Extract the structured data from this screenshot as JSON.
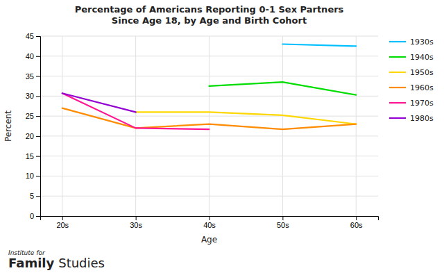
{
  "chart_data": {
    "type": "line",
    "title": "Percentage of Americans Reporting 0-1 Sex Partners\nSince Age 18, by Age and Birth Cohort",
    "x_label": "Age",
    "y_label": "Percent",
    "categories": [
      "20s",
      "30s",
      "40s",
      "50s",
      "60s"
    ],
    "series": [
      {
        "name": "1930s",
        "color": "#00BFFF",
        "values": [
          null,
          null,
          null,
          43,
          42.5
        ]
      },
      {
        "name": "1940s",
        "color": "#00DD00",
        "values": [
          null,
          null,
          32.5,
          33.5,
          30.3
        ]
      },
      {
        "name": "1950s",
        "color": "#FFD700",
        "values": [
          null,
          26,
          26,
          25.2,
          23
        ]
      },
      {
        "name": "1960s",
        "color": "#FF8C00",
        "values": [
          27,
          22,
          23,
          21.7,
          23
        ]
      },
      {
        "name": "1970s",
        "color": "#FF1493",
        "values": [
          30.7,
          22,
          21.7,
          null,
          null
        ]
      },
      {
        "name": "1980s",
        "color": "#9400D3",
        "values": [
          30.7,
          26,
          null,
          null,
          null
        ]
      }
    ],
    "ylim": [
      0,
      45
    ],
    "yticks": [
      0,
      5,
      10,
      15,
      20,
      25,
      30,
      35,
      40,
      45
    ],
    "grid": true,
    "legend": "right",
    "annotations": [
      "Institute for",
      "Family",
      "Studies"
    ]
  }
}
